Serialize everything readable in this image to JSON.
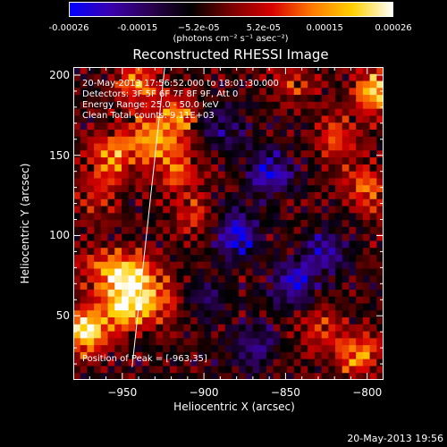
{
  "colorbar": {
    "ticks": [
      "-0.00026",
      "-0.00015",
      "−5.2e-05",
      "5.2e-05",
      "0.00015",
      "0.00026"
    ],
    "tick_values": [
      -0.00026,
      -0.00015,
      -5.2e-05,
      5.2e-05,
      0.00015,
      0.00026
    ],
    "range": [
      -0.00026,
      0.00026
    ],
    "unit_label": "(photons cm⁻² s⁻¹ asec⁻²)"
  },
  "chart_data": {
    "type": "heatmap",
    "title": "Reconstructed RHESSI Image",
    "xlabel": "Heliocentric X (arcsec)",
    "ylabel": "Heliocentric Y (arcsec)",
    "xlim": [
      -980,
      -790
    ],
    "ylim": [
      10,
      205
    ],
    "xticks": [
      -950,
      -900,
      -850,
      -800
    ],
    "yticks": [
      50,
      100,
      150,
      200
    ],
    "colormap": [
      "#0000ff",
      "#3a00b0",
      "#2a0050",
      "#000000",
      "#7a0000",
      "#d60000",
      "#ff7a00",
      "#ffd000",
      "#ffffff"
    ],
    "limb_line": [
      [
        -944,
        18
      ],
      [
        -924,
        205
      ]
    ],
    "peak": [
      -963,
      35
    ],
    "blobs": [
      {
        "x": -972,
        "y": 40,
        "amp": 1.0
      },
      {
        "x": -950,
        "y": 55,
        "amp": 0.85
      },
      {
        "x": -945,
        "y": 75,
        "amp": 0.95
      },
      {
        "x": -930,
        "y": 60,
        "amp": 0.6
      },
      {
        "x": -965,
        "y": 80,
        "amp": 0.5
      },
      {
        "x": -955,
        "y": 150,
        "amp": 0.7
      },
      {
        "x": -930,
        "y": 160,
        "amp": 0.75
      },
      {
        "x": -915,
        "y": 140,
        "amp": 0.55
      },
      {
        "x": -915,
        "y": 175,
        "amp": 0.6
      },
      {
        "x": -940,
        "y": 195,
        "amp": 0.6
      },
      {
        "x": -965,
        "y": 125,
        "amp": 0.45
      },
      {
        "x": -905,
        "y": 110,
        "amp": 0.4
      },
      {
        "x": -795,
        "y": 190,
        "amp": 0.9
      },
      {
        "x": -820,
        "y": 160,
        "amp": 0.5
      },
      {
        "x": -800,
        "y": 130,
        "amp": 0.6
      },
      {
        "x": -805,
        "y": 25,
        "amp": 0.7
      },
      {
        "x": -830,
        "y": 40,
        "amp": 0.4
      },
      {
        "x": -845,
        "y": 195,
        "amp": 0.35
      },
      {
        "x": -880,
        "y": 100,
        "amp": -0.8
      },
      {
        "x": -860,
        "y": 140,
        "amp": -0.7
      },
      {
        "x": -845,
        "y": 70,
        "amp": -0.6
      },
      {
        "x": -825,
        "y": 90,
        "amp": -0.55
      },
      {
        "x": -870,
        "y": 30,
        "amp": -0.5
      },
      {
        "x": -890,
        "y": 170,
        "amp": -0.45
      },
      {
        "x": -900,
        "y": 60,
        "amp": -0.3
      }
    ]
  },
  "annotations": {
    "time": "20-May-2013 17:56:52.000 to 18:01:30.000",
    "detectors": "Detectors: 3F 5F 6F 7F 8F 9F, Att 0",
    "energy": "Energy Range: 25.0 - 50.0 keV",
    "method": "Clean    Total counts: 9.11E+03",
    "peak_text": "Position of Peak = [-963,35]"
  },
  "timestamp": "20-May-2013 19:56"
}
